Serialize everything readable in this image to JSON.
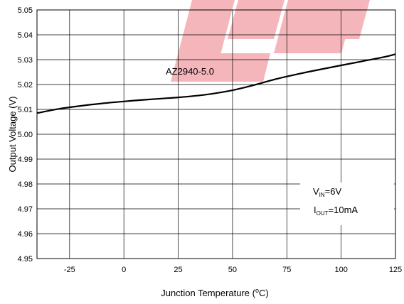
{
  "chart_data": {
    "type": "line",
    "xlabel": {
      "main": "Junction Temperature (",
      "sup": "o",
      "tail": "C)"
    },
    "ylabel": "Output Voltage (V)",
    "xlim": [
      -40,
      125
    ],
    "ylim": [
      4.95,
      5.05
    ],
    "xticks": [
      -25,
      0,
      25,
      50,
      75,
      100,
      125
    ],
    "xtick_labels": [
      "-25",
      "0",
      "25",
      "50",
      "75",
      "100",
      "125"
    ],
    "yticks": [
      4.95,
      4.96,
      4.97,
      4.98,
      4.99,
      5.0,
      5.01,
      5.02,
      5.03,
      5.04,
      5.05
    ],
    "ytick_labels": [
      "4.95",
      "4.96",
      "4.97",
      "4.98",
      "4.99",
      "5.00",
      "5.01",
      "5.02",
      "5.03",
      "5.04",
      "5.05"
    ],
    "grid": true,
    "series": [
      {
        "name": "AZ2940-5.0",
        "color": "#000000",
        "x": [
          -40,
          -30,
          -20,
          -10,
          0,
          10,
          20,
          30,
          40,
          50,
          60,
          70,
          80,
          90,
          100,
          110,
          120,
          125
        ],
        "y": [
          5.0085,
          5.0102,
          5.0114,
          5.0124,
          5.0132,
          5.0139,
          5.0145,
          5.0152,
          5.0162,
          5.0177,
          5.0198,
          5.0222,
          5.0242,
          5.026,
          5.0277,
          5.0294,
          5.0311,
          5.0322
        ]
      }
    ],
    "annotations": {
      "vin": {
        "main": "V",
        "sub": "IN",
        "tail": "=6V"
      },
      "iout": {
        "main": "I",
        "sub": "OUT",
        "tail": "=10mA"
      }
    }
  },
  "watermark": {
    "color": "#e03040"
  }
}
